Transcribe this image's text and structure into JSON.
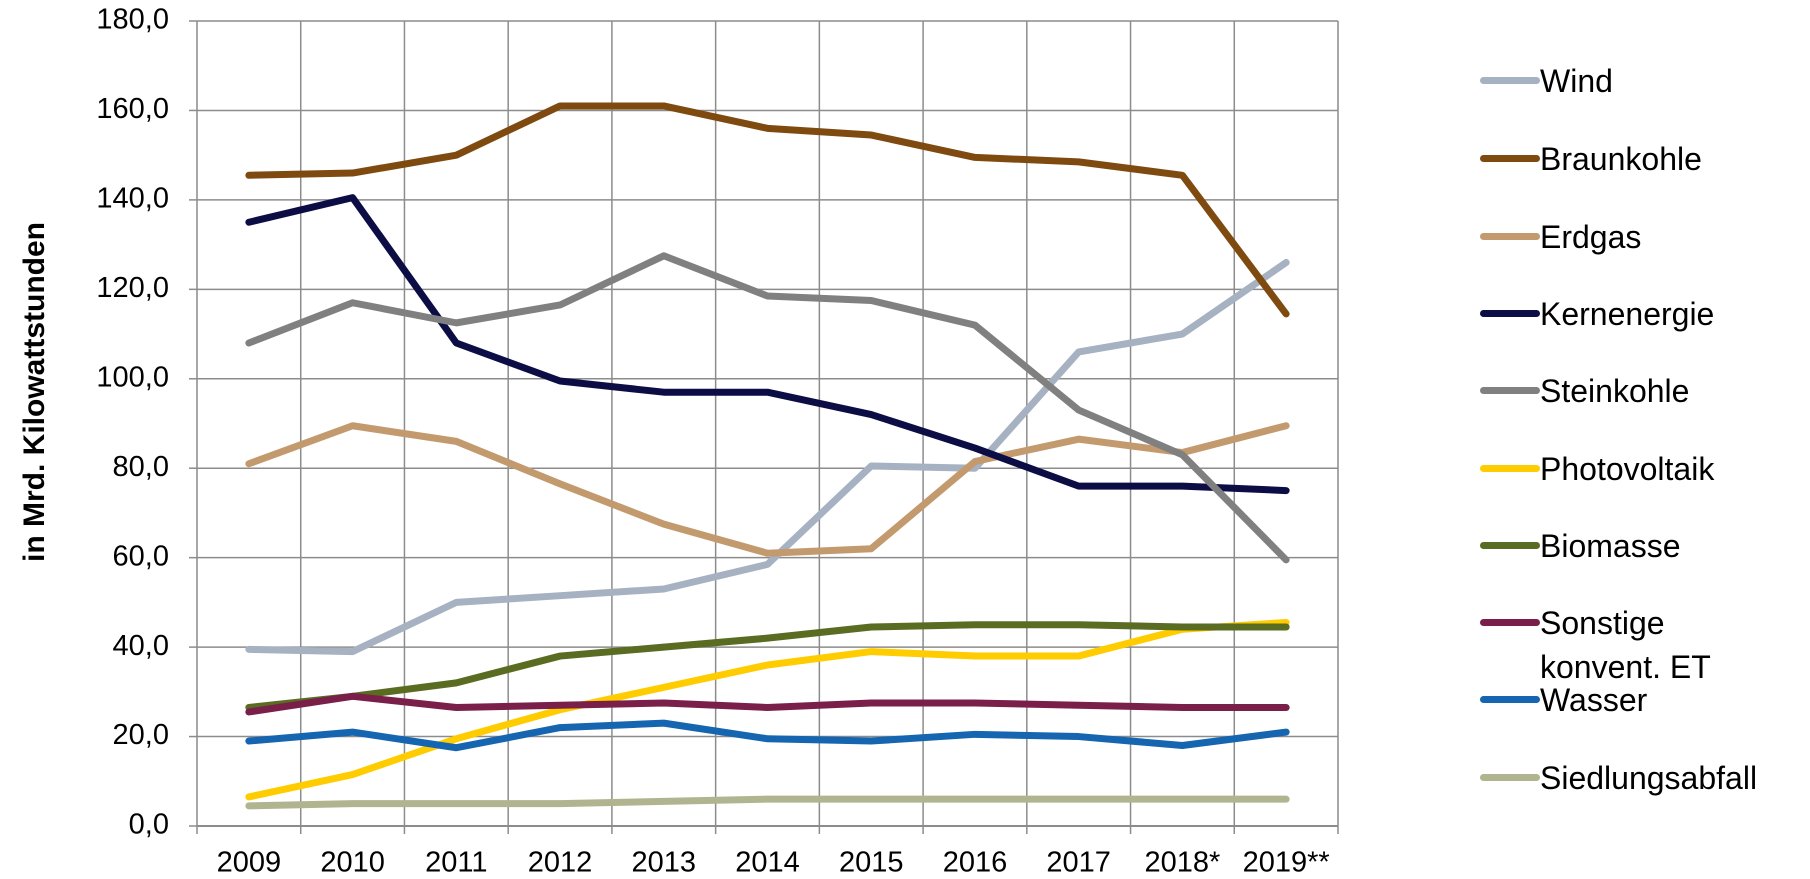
{
  "chart_data": {
    "type": "line",
    "y_label": "in Mrd. Kilowattstunden",
    "categories": [
      "2009",
      "2010",
      "2011",
      "2012",
      "2013",
      "2014",
      "2015",
      "2016",
      "2017",
      "2018*",
      "2019**"
    ],
    "ylim": [
      0,
      180
    ],
    "yticks": [
      {
        "value": 0,
        "label": "0,0"
      },
      {
        "value": 20,
        "label": "20,0"
      },
      {
        "value": 40,
        "label": "40,0"
      },
      {
        "value": 60,
        "label": "60,0"
      },
      {
        "value": 80,
        "label": "80,0"
      },
      {
        "value": 100,
        "label": "100,0"
      },
      {
        "value": 120,
        "label": "120,0"
      },
      {
        "value": 140,
        "label": "140,0"
      },
      {
        "value": 160,
        "label": "160,0"
      },
      {
        "value": 180,
        "label": "180,0"
      }
    ],
    "grid": true,
    "legend": "right",
    "series": [
      {
        "name": "Wind",
        "color": "#a6b1c2",
        "values": [
          39.5,
          39,
          50,
          51.5,
          53,
          58.5,
          80.5,
          80,
          106,
          110,
          126
        ]
      },
      {
        "name": "Braunkohle",
        "color": "#7f4a10",
        "values": [
          145.5,
          146,
          150,
          161,
          161,
          156,
          154.5,
          149.5,
          148.5,
          145.5,
          114.5
        ]
      },
      {
        "name": "Erdgas",
        "color": "#c29a6e",
        "values": [
          81,
          89.5,
          86,
          76.5,
          67.5,
          61,
          62,
          81.5,
          86.5,
          83.5,
          89.5
        ]
      },
      {
        "name": "Kernenergie",
        "color": "#0d0d45",
        "values": [
          135,
          140.5,
          108,
          99.5,
          97,
          97,
          92,
          84.5,
          76,
          76,
          75
        ]
      },
      {
        "name": "Steinkohle",
        "color": "#808080",
        "values": [
          108,
          117,
          112.5,
          116.5,
          127.5,
          118.5,
          117.5,
          112,
          93,
          83,
          59.5
        ]
      },
      {
        "name": "Photovoltaik",
        "color": "#ffcc00",
        "values": [
          6.5,
          11.5,
          19.5,
          26,
          31,
          36,
          39,
          38,
          38,
          44,
          45.5
        ]
      },
      {
        "name": "Biomasse",
        "color": "#5a6b22",
        "values": [
          26.5,
          29,
          32,
          38,
          40,
          42,
          44.5,
          45,
          45,
          44.5,
          44.5
        ]
      },
      {
        "name": "Sonstige konvent. ET",
        "color": "#7a1f4a",
        "values": [
          25.5,
          29,
          26.5,
          27,
          27.5,
          26.5,
          27.5,
          27.5,
          27,
          26.5,
          26.5
        ]
      },
      {
        "name": "Wasser",
        "color": "#1565b0",
        "values": [
          19,
          21,
          17.5,
          22,
          23,
          19.5,
          19,
          20.5,
          20,
          18,
          21
        ]
      },
      {
        "name": "Siedlungsabfall",
        "color": "#b0b58f",
        "values": [
          4.5,
          5,
          5,
          5,
          5.5,
          6,
          6,
          6,
          6,
          6,
          6
        ]
      }
    ]
  }
}
